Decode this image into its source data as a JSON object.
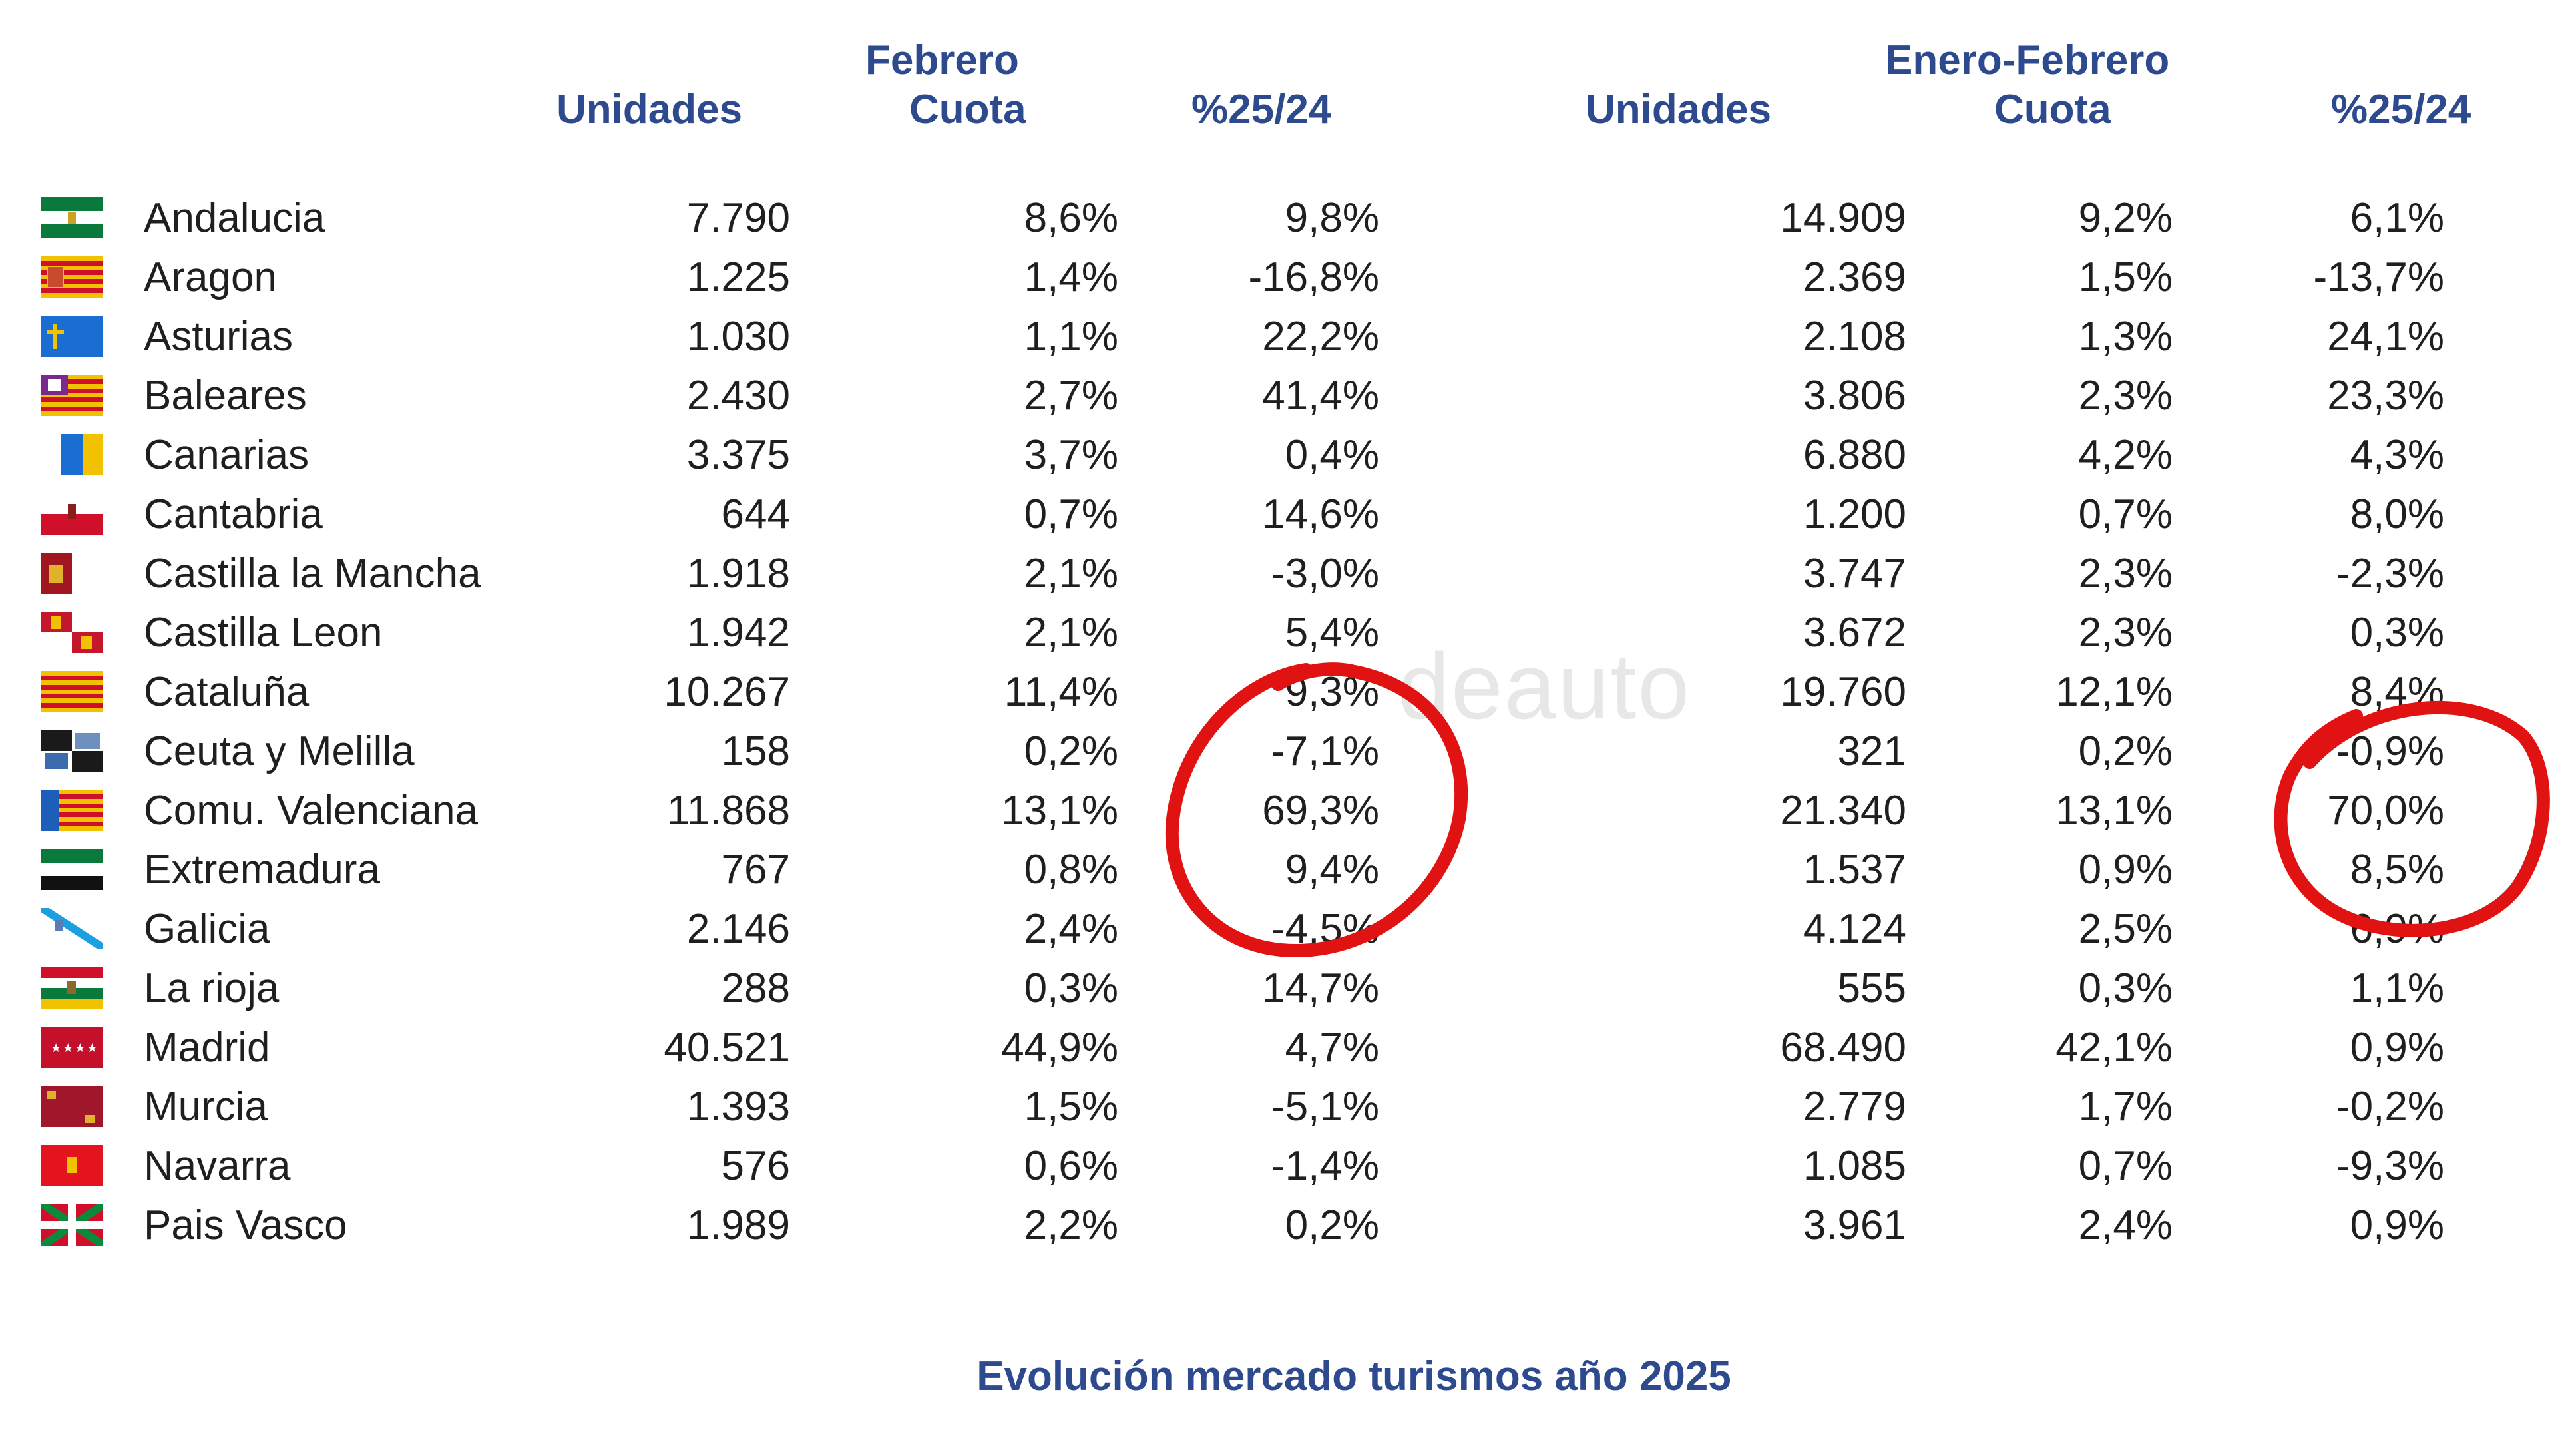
{
  "headers": {
    "feb_group": "Febrero",
    "feb_units": "Unidades",
    "feb_share": "Cuota",
    "feb_change": "%25/24",
    "ytd_group": "Enero-Febrero",
    "ytd_units": "Unidades",
    "ytd_share": "Cuota",
    "ytd_change": "%25/24"
  },
  "rows": [
    {
      "name": "Andalucia",
      "flag": "andalucia-flag",
      "feb_units": "7.790",
      "feb_share": "8,6%",
      "feb_change": "9,8%",
      "ytd_units": "14.909",
      "ytd_share": "9,2%",
      "ytd_change": "6,1%"
    },
    {
      "name": "Aragon",
      "flag": "aragon-flag",
      "feb_units": "1.225",
      "feb_share": "1,4%",
      "feb_change": "-16,8%",
      "ytd_units": "2.369",
      "ytd_share": "1,5%",
      "ytd_change": "-13,7%"
    },
    {
      "name": "Asturias",
      "flag": "asturias-flag",
      "feb_units": "1.030",
      "feb_share": "1,1%",
      "feb_change": "22,2%",
      "ytd_units": "2.108",
      "ytd_share": "1,3%",
      "ytd_change": "24,1%"
    },
    {
      "name": "Baleares",
      "flag": "baleares-flag",
      "feb_units": "2.430",
      "feb_share": "2,7%",
      "feb_change": "41,4%",
      "ytd_units": "3.806",
      "ytd_share": "2,3%",
      "ytd_change": "23,3%"
    },
    {
      "name": "Canarias",
      "flag": "canarias-flag",
      "feb_units": "3.375",
      "feb_share": "3,7%",
      "feb_change": "0,4%",
      "ytd_units": "6.880",
      "ytd_share": "4,2%",
      "ytd_change": "4,3%"
    },
    {
      "name": "Cantabria",
      "flag": "cantabria-flag",
      "feb_units": "644",
      "feb_share": "0,7%",
      "feb_change": "14,6%",
      "ytd_units": "1.200",
      "ytd_share": "0,7%",
      "ytd_change": "8,0%"
    },
    {
      "name": "Castilla la Mancha",
      "flag": "castilla-la-mancha-flag",
      "feb_units": "1.918",
      "feb_share": "2,1%",
      "feb_change": "-3,0%",
      "ytd_units": "3.747",
      "ytd_share": "2,3%",
      "ytd_change": "-2,3%"
    },
    {
      "name": "Castilla Leon",
      "flag": "castilla-leon-flag",
      "feb_units": "1.942",
      "feb_share": "2,1%",
      "feb_change": "5,4%",
      "ytd_units": "3.672",
      "ytd_share": "2,3%",
      "ytd_change": "0,3%"
    },
    {
      "name": "Cataluña",
      "flag": "cataluna-flag",
      "feb_units": "10.267",
      "feb_share": "11,4%",
      "feb_change": "9,3%",
      "ytd_units": "19.760",
      "ytd_share": "12,1%",
      "ytd_change": "8,4%"
    },
    {
      "name": "Ceuta y Melilla",
      "flag": "ceuta-melilla-flag",
      "feb_units": "158",
      "feb_share": "0,2%",
      "feb_change": "-7,1%",
      "ytd_units": "321",
      "ytd_share": "0,2%",
      "ytd_change": "-0,9%"
    },
    {
      "name": "Comu. Valenciana",
      "flag": "valenciana-flag",
      "feb_units": "11.868",
      "feb_share": "13,1%",
      "feb_change": "69,3%",
      "ytd_units": "21.340",
      "ytd_share": "13,1%",
      "ytd_change": "70,0%"
    },
    {
      "name": "Extremadura",
      "flag": "extremadura-flag",
      "feb_units": "767",
      "feb_share": "0,8%",
      "feb_change": "9,4%",
      "ytd_units": "1.537",
      "ytd_share": "0,9%",
      "ytd_change": "8,5%"
    },
    {
      "name": "Galicia",
      "flag": "galicia-flag",
      "feb_units": "2.146",
      "feb_share": "2,4%",
      "feb_change": "-4,5%",
      "ytd_units": "4.124",
      "ytd_share": "2,5%",
      "ytd_change": "6,9%"
    },
    {
      "name": "La rioja",
      "flag": "la-rioja-flag",
      "feb_units": "288",
      "feb_share": "0,3%",
      "feb_change": "14,7%",
      "ytd_units": "555",
      "ytd_share": "0,3%",
      "ytd_change": "1,1%"
    },
    {
      "name": "Madrid",
      "flag": "madrid-flag",
      "feb_units": "40.521",
      "feb_share": "44,9%",
      "feb_change": "4,7%",
      "ytd_units": "68.490",
      "ytd_share": "42,1%",
      "ytd_change": "0,9%"
    },
    {
      "name": "Murcia",
      "flag": "murcia-flag",
      "feb_units": "1.393",
      "feb_share": "1,5%",
      "feb_change": "-5,1%",
      "ytd_units": "2.779",
      "ytd_share": "1,7%",
      "ytd_change": "-0,2%"
    },
    {
      "name": "Navarra",
      "flag": "navarra-flag",
      "feb_units": "576",
      "feb_share": "0,6%",
      "feb_change": "-1,4%",
      "ytd_units": "1.085",
      "ytd_share": "0,7%",
      "ytd_change": "-9,3%"
    },
    {
      "name": "Pais Vasco",
      "flag": "pais-vasco-flag",
      "feb_units": "1.989",
      "feb_share": "2,2%",
      "feb_change": "0,2%",
      "ytd_units": "3.961",
      "ytd_share": "2,4%",
      "ytd_change": "0,9%"
    }
  ],
  "footer": "Evolución mercado turismos año 2025",
  "watermark": "deauto",
  "colors": {
    "header": "#2e4a8e",
    "annotation": "#e01212"
  }
}
